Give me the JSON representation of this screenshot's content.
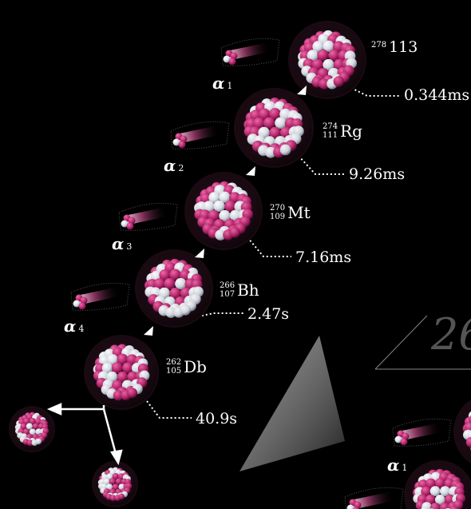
{
  "nuclei": [
    {
      "mass": "278",
      "atomic": "",
      "symbol": "113",
      "halflife": "0.344ms",
      "alpha": "α",
      "alpha_index": "1"
    },
    {
      "mass": "274",
      "atomic": "111",
      "symbol": "Rg",
      "halflife": "9.26ms",
      "alpha": "α",
      "alpha_index": "2"
    },
    {
      "mass": "270",
      "atomic": "109",
      "symbol": "Mt",
      "halflife": "7.16ms",
      "alpha": "α",
      "alpha_index": "3"
    },
    {
      "mass": "266",
      "atomic": "107",
      "symbol": "Bh",
      "halflife": "2.47s",
      "alpha": "α",
      "alpha_index": "4"
    },
    {
      "mass": "262",
      "atomic": "105",
      "symbol": "Db",
      "halflife": "40.9s"
    }
  ],
  "right_partial": {
    "number": "26",
    "alpha": "α",
    "alpha_index": "1"
  },
  "colors": {
    "proton": "#b8266e",
    "neutron": "#e8ecf2",
    "background": "#000000",
    "arrow": "#ffffff"
  }
}
